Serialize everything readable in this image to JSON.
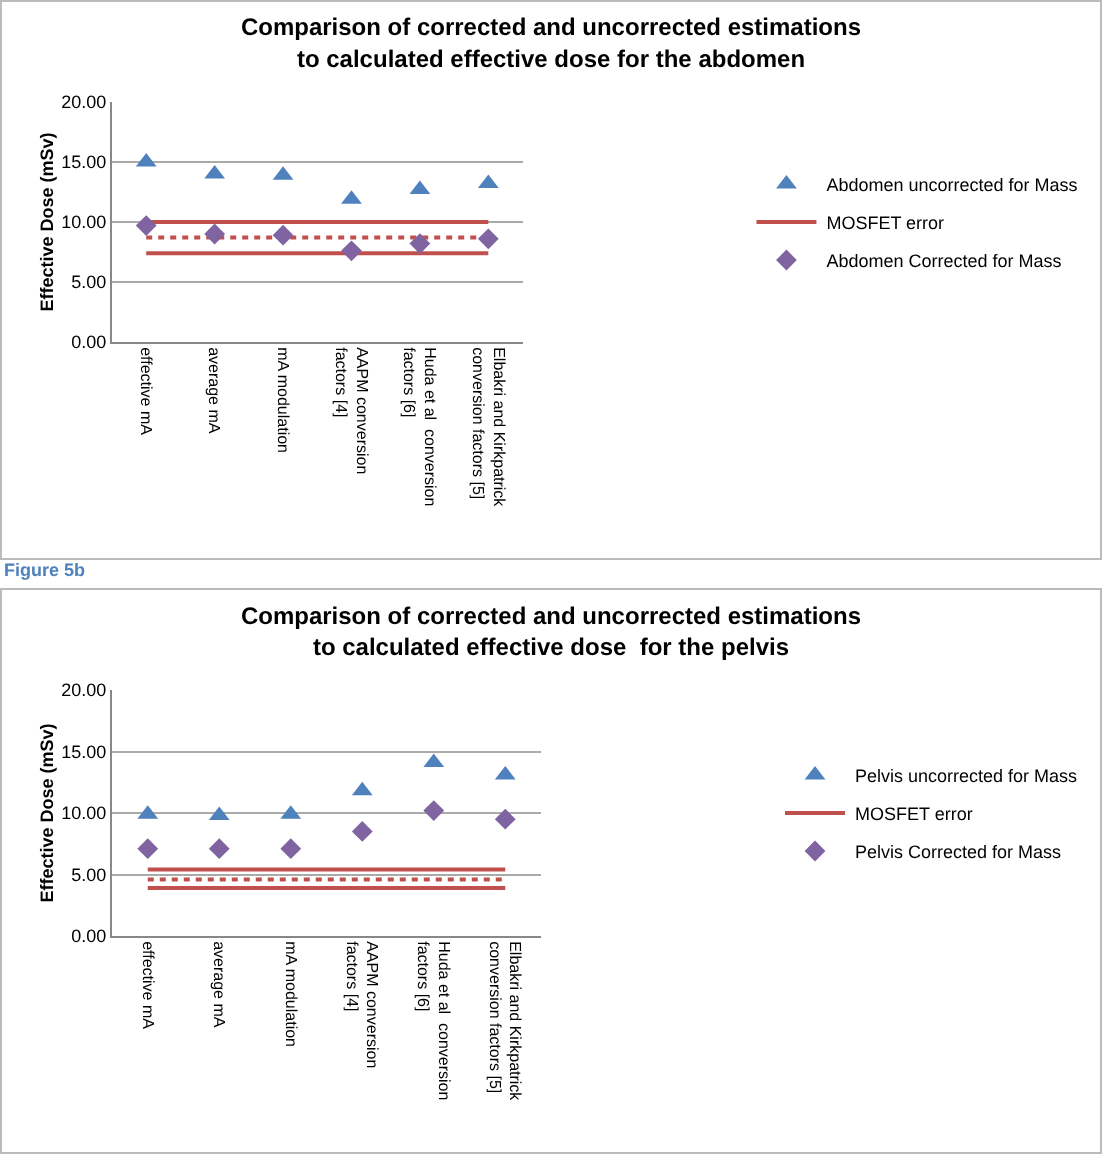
{
  "chart_data": [
    {
      "type": "scatter",
      "title": "Comparison of corrected and uncorrected estimations to calculated effective dose for the abdomen",
      "ylabel": "Effective Dose (mSv)",
      "categories": [
        "effective mA",
        "average mA",
        "mA modulation",
        "AAPM conversion factors [4]",
        "Huda et al  conversion factors [6]",
        "Elbakri and Kirkpatrick conversion factors [5]"
      ],
      "ylim": [
        0,
        20
      ],
      "yticks": [
        {
          "value": 0,
          "label": "0.00"
        },
        {
          "value": 5,
          "label": "5.00"
        },
        {
          "value": 10,
          "label": "10.00"
        },
        {
          "value": 15,
          "label": "15.00"
        },
        {
          "value": 20,
          "label": "20.00"
        }
      ],
      "grid": "y",
      "legend": "right",
      "series": [
        {
          "name": "Abdomen uncorrected for Mass",
          "type": "scatter",
          "marker": "triangle",
          "color": "#4f81bd",
          "values": [
            15.0,
            14.0,
            13.9,
            11.9,
            12.7,
            13.2
          ]
        },
        {
          "name": "MOSFET error",
          "type": "line",
          "marker": "none",
          "line_style": "solid",
          "color": "#c0504d",
          "values": [
            10.0,
            10.0,
            10.0,
            10.0,
            10.0,
            10.0
          ]
        },
        {
          "type": "line",
          "marker": "none",
          "line_style": "dotted",
          "color": "#c0504d",
          "values": [
            8.7,
            8.7,
            8.7,
            8.7,
            8.7,
            8.7
          ]
        },
        {
          "type": "line",
          "marker": "none",
          "line_style": "solid",
          "color": "#c0504d",
          "values": [
            7.4,
            7.4,
            7.4,
            7.4,
            7.4,
            7.4
          ]
        },
        {
          "name": "Abdomen Corrected for Mass",
          "type": "scatter",
          "marker": "diamond",
          "color": "#8064a2",
          "values": [
            9.7,
            9.0,
            8.9,
            7.6,
            8.2,
            8.6
          ]
        }
      ]
    },
    {
      "type": "scatter",
      "title": "Comparison of corrected and uncorrected estimations to calculated effective dose  for the pelvis",
      "ylabel": "Effective Dose (mSv)",
      "annotations": [
        "Figure 5b"
      ],
      "categories": [
        "effective mA",
        "average mA",
        "mA modulation",
        "AAPM conversion factors [4]",
        "Huda et al  conversion factors [6]",
        "Elbakri and Kirkpatrick conversion factors [5]"
      ],
      "ylim": [
        0,
        20
      ],
      "yticks": [
        {
          "value": 0,
          "label": "0.00"
        },
        {
          "value": 5,
          "label": "5.00"
        },
        {
          "value": 10,
          "label": "10.00"
        },
        {
          "value": 15,
          "label": "15.00"
        },
        {
          "value": 20,
          "label": "20.00"
        }
      ],
      "grid": "y",
      "legend": "right",
      "series": [
        {
          "name": "Pelvis uncorrected for Mass",
          "type": "scatter",
          "marker": "triangle",
          "color": "#4f81bd",
          "values": [
            9.9,
            9.8,
            9.9,
            11.8,
            14.1,
            13.1
          ]
        },
        {
          "name": "MOSFET error",
          "type": "line",
          "marker": "none",
          "line_style": "solid",
          "color": "#c0504d",
          "values": [
            5.4,
            5.4,
            5.4,
            5.4,
            5.4,
            5.4
          ]
        },
        {
          "type": "line",
          "marker": "none",
          "line_style": "dotted",
          "color": "#c0504d",
          "values": [
            4.6,
            4.6,
            4.6,
            4.6,
            4.6,
            4.6
          ]
        },
        {
          "type": "line",
          "marker": "none",
          "line_style": "solid",
          "color": "#c0504d",
          "values": [
            3.9,
            3.9,
            3.9,
            3.9,
            3.9,
            3.9
          ]
        },
        {
          "name": "Pelvis Corrected for Mass",
          "type": "scatter",
          "marker": "diamond",
          "color": "#8064a2",
          "values": [
            7.1,
            7.1,
            7.1,
            8.5,
            10.2,
            9.5
          ]
        }
      ]
    }
  ]
}
